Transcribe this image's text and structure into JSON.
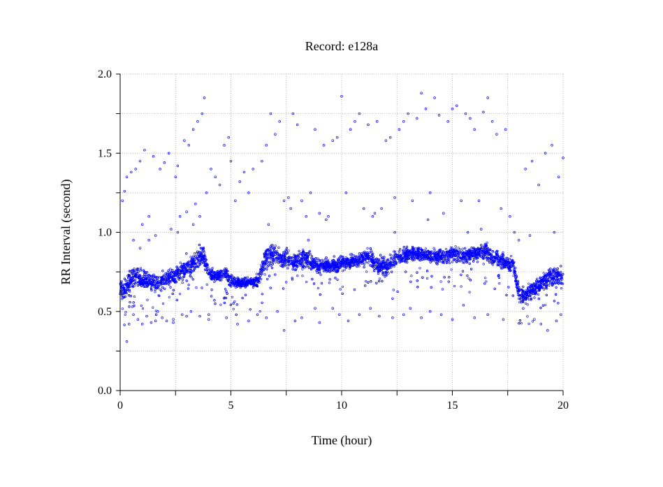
{
  "chart_data": {
    "type": "scatter",
    "title": "Record:  e128a",
    "xlabel": "Time (hour)",
    "ylabel": "RR Interval (second)",
    "xlim": [
      0,
      20
    ],
    "ylim": [
      0,
      2.0
    ],
    "x_ticks": [
      "0",
      "5",
      "10",
      "15",
      "20"
    ],
    "y_ticks": [
      "0.0",
      "0.5",
      "1.0",
      "1.5",
      "2.0"
    ],
    "grid": true,
    "marker_color": "#0000ff",
    "series": [
      {
        "x": [
          0.0,
          0.25,
          0.5,
          0.75,
          1.0,
          1.25,
          1.5,
          1.75,
          2.0,
          2.25,
          2.5,
          2.75,
          3.0,
          3.25,
          3.5,
          3.75,
          4.0,
          4.25,
          4.5,
          4.75,
          5.0,
          5.25,
          5.5,
          5.75,
          6.0,
          6.25,
          6.5,
          6.75,
          7.0,
          7.25,
          7.5,
          7.75,
          8.0,
          8.25,
          8.5,
          8.75,
          9.0,
          9.25,
          9.5,
          9.75,
          10.0,
          10.25,
          10.5,
          10.75,
          11.0,
          11.25,
          11.5,
          11.75,
          12.0,
          12.25,
          12.5,
          12.75,
          13.0,
          13.25,
          13.5,
          13.75,
          14.0,
          14.25,
          14.5,
          14.75,
          15.0,
          15.25,
          15.5,
          15.75,
          16.0,
          16.25,
          16.5,
          16.75,
          17.0,
          17.25,
          17.5,
          17.75,
          18.0,
          18.25,
          18.5,
          18.75,
          19.0,
          19.25,
          19.5,
          19.75,
          20.0
        ],
        "y": [
          0.63,
          0.66,
          0.7,
          0.72,
          0.69,
          0.7,
          0.68,
          0.67,
          0.7,
          0.72,
          0.73,
          0.75,
          0.78,
          0.8,
          0.83,
          0.86,
          0.75,
          0.72,
          0.73,
          0.74,
          0.69,
          0.68,
          0.68,
          0.69,
          0.68,
          0.7,
          0.82,
          0.86,
          0.85,
          0.83,
          0.84,
          0.82,
          0.82,
          0.83,
          0.84,
          0.8,
          0.78,
          0.8,
          0.79,
          0.79,
          0.8,
          0.81,
          0.82,
          0.82,
          0.83,
          0.84,
          0.8,
          0.79,
          0.78,
          0.81,
          0.84,
          0.85,
          0.86,
          0.86,
          0.87,
          0.86,
          0.85,
          0.85,
          0.84,
          0.85,
          0.86,
          0.86,
          0.85,
          0.86,
          0.86,
          0.87,
          0.88,
          0.85,
          0.84,
          0.82,
          0.8,
          0.8,
          0.62,
          0.6,
          0.62,
          0.65,
          0.68,
          0.7,
          0.72,
          0.72,
          0.72
        ],
        "spread": [
          0.09,
          0.09,
          0.09,
          0.09,
          0.08,
          0.08,
          0.08,
          0.08,
          0.08,
          0.08,
          0.09,
          0.09,
          0.09,
          0.09,
          0.1,
          0.1,
          0.07,
          0.05,
          0.05,
          0.05,
          0.05,
          0.04,
          0.04,
          0.04,
          0.04,
          0.06,
          0.09,
          0.09,
          0.08,
          0.08,
          0.08,
          0.08,
          0.08,
          0.08,
          0.08,
          0.07,
          0.07,
          0.07,
          0.06,
          0.06,
          0.06,
          0.06,
          0.06,
          0.06,
          0.07,
          0.07,
          0.08,
          0.08,
          0.07,
          0.07,
          0.07,
          0.07,
          0.07,
          0.06,
          0.06,
          0.06,
          0.06,
          0.07,
          0.07,
          0.07,
          0.07,
          0.07,
          0.07,
          0.07,
          0.07,
          0.07,
          0.08,
          0.08,
          0.07,
          0.07,
          0.06,
          0.06,
          0.08,
          0.08,
          0.08,
          0.08,
          0.08,
          0.08,
          0.09,
          0.09,
          0.09
        ],
        "outliers": [
          [
            0.1,
            1.2
          ],
          [
            0.2,
            1.26
          ],
          [
            0.3,
            1.35
          ],
          [
            0.4,
            0.42
          ],
          [
            0.5,
            1.38
          ],
          [
            0.6,
            0.95
          ],
          [
            0.7,
            1.4
          ],
          [
            0.8,
            0.45
          ],
          [
            0.9,
            1.45
          ],
          [
            1.0,
            1.05
          ],
          [
            1.1,
            1.52
          ],
          [
            1.2,
            0.47
          ],
          [
            1.3,
            1.1
          ],
          [
            1.4,
            0.43
          ],
          [
            1.5,
            1.48
          ],
          [
            1.6,
            0.98
          ],
          [
            1.7,
            0.5
          ],
          [
            1.8,
            1.4
          ],
          [
            1.9,
            0.46
          ],
          [
            2.0,
            1.44
          ],
          [
            2.1,
            0.44
          ],
          [
            2.2,
            1.5
          ],
          [
            2.3,
            1.02
          ],
          [
            2.4,
            0.45
          ],
          [
            2.5,
            1.35
          ],
          [
            2.6,
            1.42
          ],
          [
            2.7,
            1.1
          ],
          [
            2.8,
            0.48
          ],
          [
            2.9,
            1.58
          ],
          [
            3.0,
            1.13
          ],
          [
            3.1,
            1.55
          ],
          [
            3.2,
            0.5
          ],
          [
            3.3,
            1.65
          ],
          [
            3.4,
            1.18
          ],
          [
            3.5,
            1.7
          ],
          [
            3.6,
            0.47
          ],
          [
            3.7,
            1.75
          ],
          [
            3.8,
            1.85
          ],
          [
            3.9,
            1.25
          ],
          [
            4.0,
            0.45
          ],
          [
            4.1,
            1.4
          ],
          [
            4.3,
            1.35
          ],
          [
            4.5,
            1.3
          ],
          [
            4.7,
            1.55
          ],
          [
            4.9,
            1.6
          ],
          [
            5.0,
            1.45
          ],
          [
            5.2,
            1.2
          ],
          [
            5.4,
            1.32
          ],
          [
            5.6,
            1.38
          ],
          [
            5.8,
            1.25
          ],
          [
            6.0,
            1.4
          ],
          [
            6.2,
            0.48
          ],
          [
            6.4,
            1.45
          ],
          [
            6.6,
            1.55
          ],
          [
            6.8,
            1.75
          ],
          [
            7.0,
            1.62
          ],
          [
            7.2,
            1.7
          ],
          [
            7.4,
            1.2
          ],
          [
            7.6,
            1.22
          ],
          [
            7.8,
            1.75
          ],
          [
            8.0,
            1.68
          ],
          [
            8.2,
            1.2
          ],
          [
            8.4,
            1.1
          ],
          [
            8.6,
            1.25
          ],
          [
            8.8,
            1.65
          ],
          [
            9.0,
            1.12
          ],
          [
            9.2,
            1.55
          ],
          [
            9.4,
            1.1
          ],
          [
            9.6,
            1.58
          ],
          [
            9.8,
            1.6
          ],
          [
            10.0,
            1.86
          ],
          [
            10.2,
            1.25
          ],
          [
            10.4,
            1.65
          ],
          [
            10.6,
            1.7
          ],
          [
            10.8,
            1.75
          ],
          [
            11.0,
            1.15
          ],
          [
            11.2,
            1.68
          ],
          [
            11.4,
            1.1
          ],
          [
            11.6,
            1.7
          ],
          [
            11.8,
            1.15
          ],
          [
            12.0,
            1.58
          ],
          [
            12.2,
            1.6
          ],
          [
            12.4,
            1.22
          ],
          [
            12.6,
            1.65
          ],
          [
            12.8,
            1.7
          ],
          [
            13.0,
            1.75
          ],
          [
            13.2,
            1.2
          ],
          [
            13.4,
            1.72
          ],
          [
            13.6,
            1.88
          ],
          [
            13.8,
            1.78
          ],
          [
            14.0,
            1.25
          ],
          [
            14.2,
            1.85
          ],
          [
            14.4,
            1.74
          ],
          [
            14.6,
            1.12
          ],
          [
            14.8,
            1.7
          ],
          [
            15.0,
            1.78
          ],
          [
            15.2,
            1.8
          ],
          [
            15.4,
            1.2
          ],
          [
            15.6,
            1.75
          ],
          [
            15.8,
            1.72
          ],
          [
            16.0,
            1.65
          ],
          [
            16.2,
            1.2
          ],
          [
            16.4,
            1.76
          ],
          [
            16.6,
            1.85
          ],
          [
            16.8,
            1.7
          ],
          [
            17.0,
            1.62
          ],
          [
            17.2,
            1.15
          ],
          [
            17.4,
            1.65
          ],
          [
            17.6,
            1.1
          ],
          [
            17.8,
            1.0
          ],
          [
            18.0,
            0.95
          ],
          [
            18.3,
            1.4
          ],
          [
            18.6,
            1.45
          ],
          [
            18.9,
            1.3
          ],
          [
            19.2,
            1.5
          ],
          [
            19.5,
            1.55
          ],
          [
            19.8,
            1.35
          ],
          [
            20.0,
            1.47
          ],
          [
            0.3,
            0.31
          ],
          [
            0.6,
            0.48
          ],
          [
            1.0,
            0.42
          ],
          [
            1.6,
            0.44
          ],
          [
            2.4,
            0.43
          ],
          [
            3.0,
            0.47
          ],
          [
            4.0,
            0.48
          ],
          [
            4.8,
            0.46
          ],
          [
            5.3,
            0.42
          ],
          [
            5.8,
            0.44
          ],
          [
            6.6,
            0.46
          ],
          [
            7.1,
            0.5
          ],
          [
            7.4,
            0.38
          ],
          [
            7.9,
            0.44
          ],
          [
            8.2,
            0.46
          ],
          [
            8.8,
            0.52
          ],
          [
            9.0,
            0.43
          ],
          [
            9.6,
            0.52
          ],
          [
            9.9,
            0.48
          ],
          [
            10.3,
            0.44
          ],
          [
            10.8,
            0.48
          ],
          [
            11.3,
            0.52
          ],
          [
            11.7,
            0.47
          ],
          [
            12.3,
            0.46
          ],
          [
            12.8,
            0.48
          ],
          [
            13.1,
            0.52
          ],
          [
            13.6,
            0.46
          ],
          [
            14.0,
            0.5
          ],
          [
            14.5,
            0.48
          ],
          [
            15.0,
            0.45
          ],
          [
            15.5,
            0.54
          ],
          [
            16.0,
            0.46
          ],
          [
            16.6,
            0.48
          ],
          [
            17.3,
            0.45
          ],
          [
            18.2,
            0.52
          ],
          [
            18.7,
            0.45
          ],
          [
            19.0,
            0.42
          ],
          [
            19.3,
            0.38
          ],
          [
            19.7,
            0.44
          ],
          [
            19.9,
            0.48
          ],
          [
            0.9,
            0.9
          ],
          [
            1.3,
            0.95
          ],
          [
            2.6,
            1.0
          ],
          [
            3.3,
            1.05
          ],
          [
            3.6,
            1.1
          ],
          [
            6.7,
            1.05
          ],
          [
            7.7,
            1.15
          ],
          [
            8.5,
            0.95
          ],
          [
            9.3,
            1.08
          ],
          [
            11.5,
            1.12
          ],
          [
            12.4,
            1.0
          ],
          [
            13.9,
            1.08
          ],
          [
            15.7,
            1.0
          ],
          [
            16.3,
            1.02
          ],
          [
            18.5,
            0.98
          ],
          [
            19.6,
            1.0
          ]
        ]
      }
    ]
  }
}
